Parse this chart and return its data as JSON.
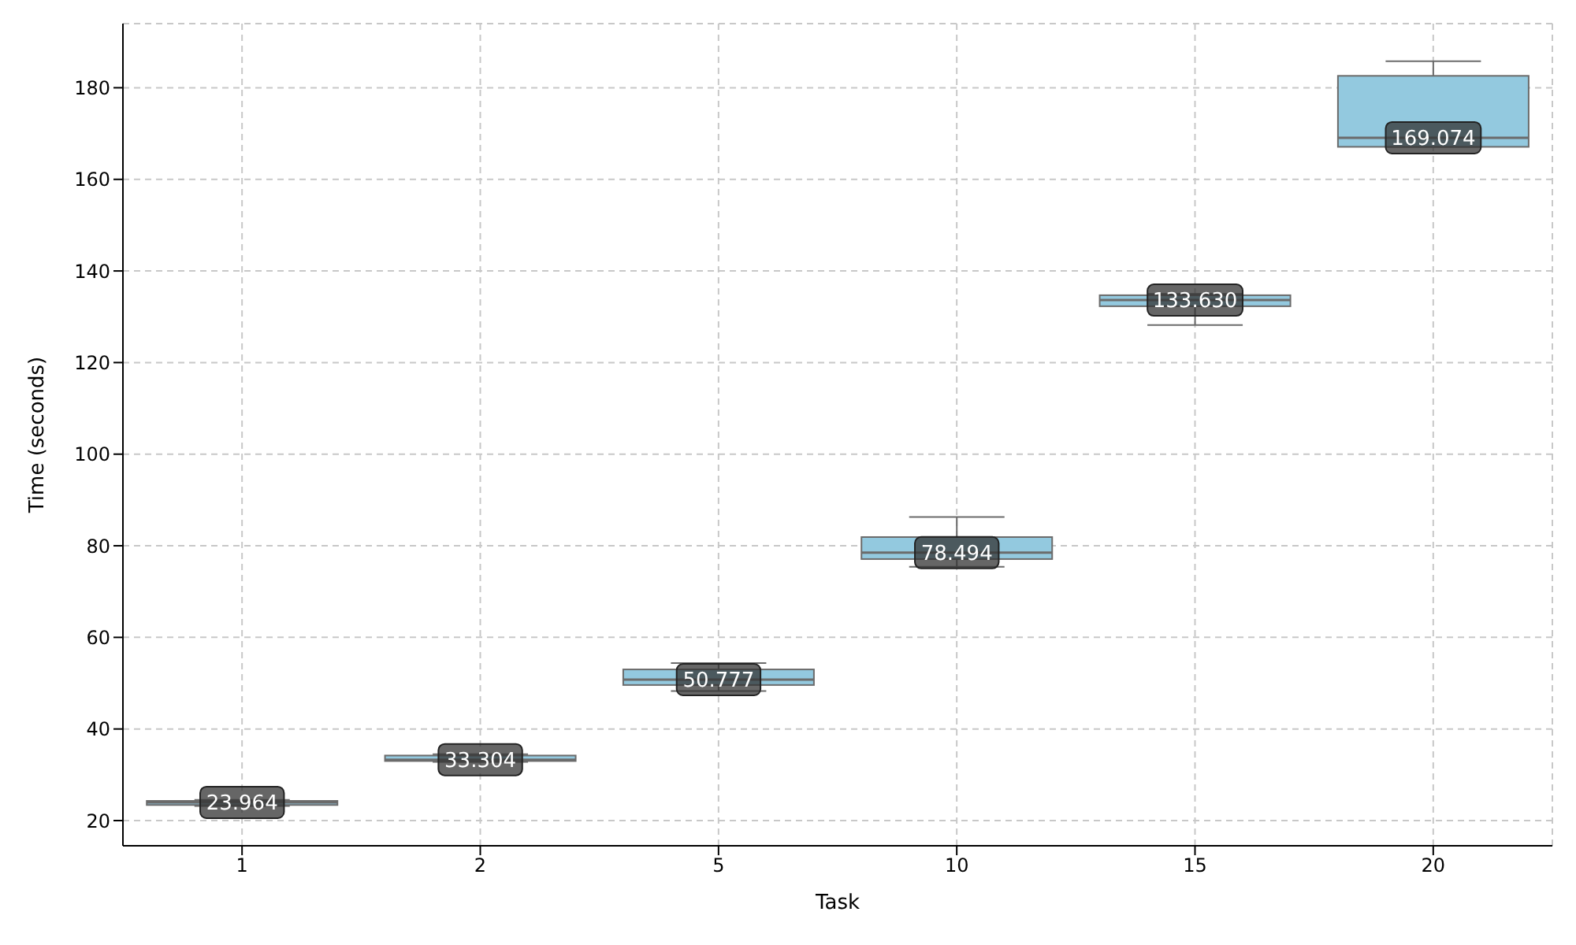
{
  "chart_data": {
    "type": "box",
    "xlabel": "Task",
    "ylabel": "Time (seconds)",
    "categories": [
      "1",
      "2",
      "5",
      "10",
      "15",
      "20"
    ],
    "boxes": [
      {
        "low": 23.2,
        "q1": 23.4,
        "median": 23.964,
        "q3": 24.3,
        "high": 24.5
      },
      {
        "low": 32.8,
        "q1": 33.0,
        "median": 33.304,
        "q3": 34.2,
        "high": 34.5
      },
      {
        "low": 48.3,
        "q1": 49.6,
        "median": 50.777,
        "q3": 53.0,
        "high": 54.4
      },
      {
        "low": 75.4,
        "q1": 77.1,
        "median": 78.494,
        "q3": 81.9,
        "high": 86.3
      },
      {
        "low": 128.2,
        "q1": 132.3,
        "median": 133.63,
        "q3": 134.7,
        "high": 135.0
      },
      {
        "low": 167.1,
        "q1": 167.1,
        "median": 169.074,
        "q3": 182.6,
        "high": 185.8
      }
    ],
    "value_labels": [
      "23.964",
      "33.304",
      "50.777",
      "78.494",
      "133.630",
      "169.074"
    ],
    "color": "#93c9df",
    "ylim": [
      14.5,
      194
    ],
    "yticks": [
      20,
      40,
      60,
      80,
      100,
      120,
      140,
      160,
      180
    ],
    "grid": true
  }
}
